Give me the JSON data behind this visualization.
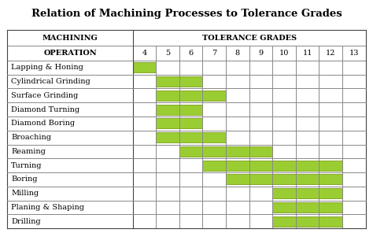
{
  "title": "Relation of Machining Processes to Tolerance Grades",
  "header_left_line1": "MACHINING",
  "header_left_line2": "OPERATION",
  "header_right": "TOLERANCE GRADES",
  "grades": [
    "4",
    "5",
    "6",
    "7",
    "8",
    "9",
    "10",
    "11",
    "12",
    "13"
  ],
  "operations": [
    "Lapping & Honing",
    "Cylindrical Grinding",
    "Surface Grinding",
    "Diamond Turning",
    "Diamond Boring",
    "Broaching",
    "Reaming",
    "Turning",
    "Boring",
    "Milling",
    "Planing & Shaping",
    "Drilling"
  ],
  "ranges": [
    [
      0,
      1
    ],
    [
      1,
      3
    ],
    [
      1,
      4
    ],
    [
      1,
      3
    ],
    [
      1,
      3
    ],
    [
      1,
      4
    ],
    [
      2,
      6
    ],
    [
      3,
      9
    ],
    [
      4,
      9
    ],
    [
      6,
      9
    ],
    [
      6,
      9
    ],
    [
      6,
      9
    ]
  ],
  "bar_color": "#9acd32",
  "bar_edge_color": "#6b8e00",
  "background_color": "#ffffff",
  "line_color": "#888888",
  "title_fontsize": 9.5,
  "label_fontsize": 7,
  "header_fontsize": 7,
  "grade_fontsize": 7
}
